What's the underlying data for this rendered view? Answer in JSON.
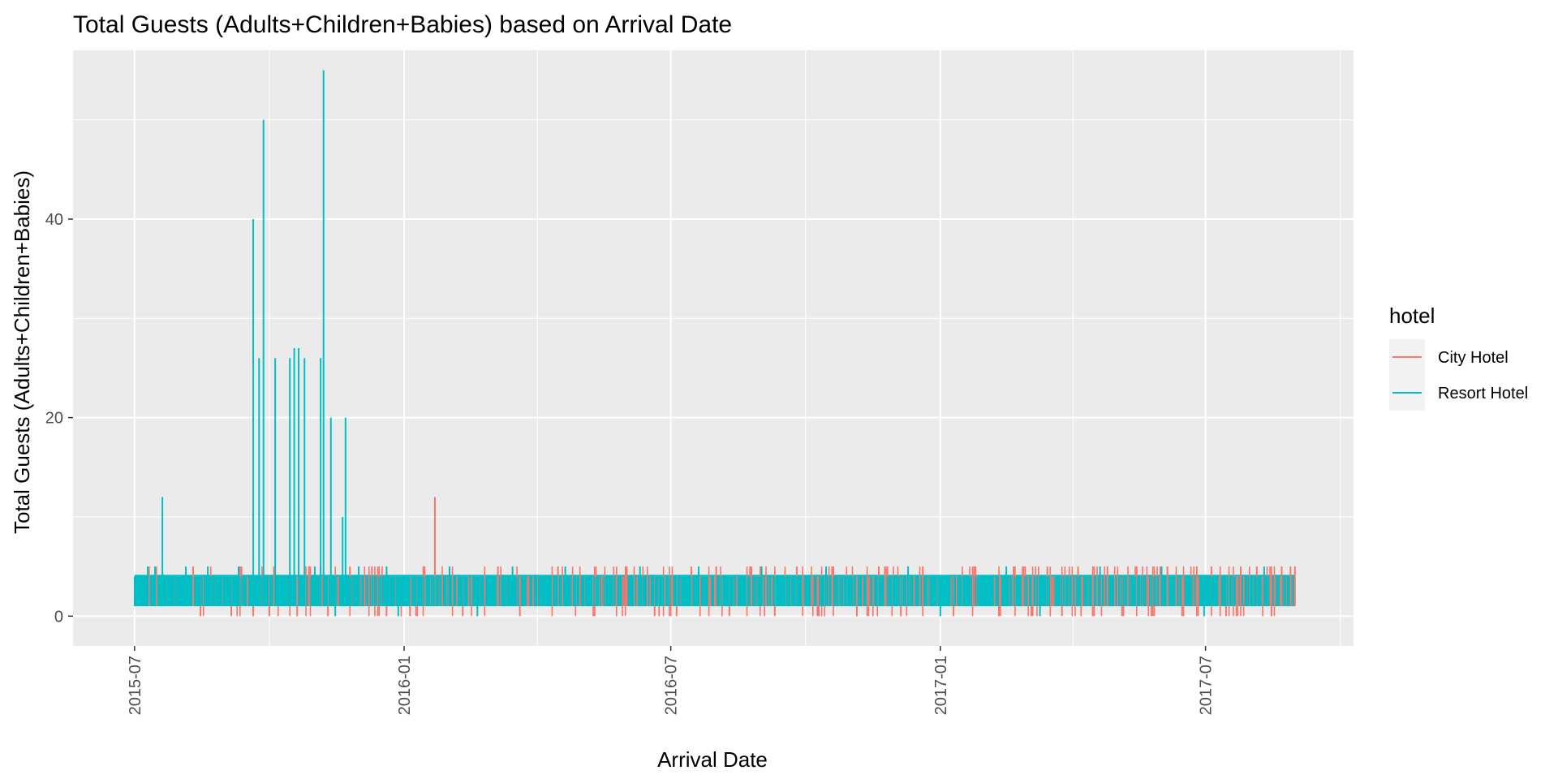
{
  "chart_data": {
    "type": "line",
    "title": "Total Guests (Adults+Children+Babies) based on Arrival Date",
    "xlabel": "Arrival Date",
    "ylabel": "Total Guests (Adults+Children+Babies)",
    "x_type": "date",
    "xlim": [
      "2015-05-20",
      "2017-10-10"
    ],
    "ylim": [
      -3,
      57
    ],
    "x_ticks": [
      "2015-07",
      "2016-01",
      "2016-07",
      "2017-01",
      "2017-07"
    ],
    "x_tick_dates": [
      "2015-07-01",
      "2016-01-01",
      "2016-07-01",
      "2017-01-01",
      "2017-07-01"
    ],
    "y_ticks": [
      0,
      20,
      40
    ],
    "grid": true,
    "legend": {
      "title": "hotel",
      "position": "right"
    },
    "band": {
      "start": "2015-07-01",
      "end": "2017-08-31",
      "low": 1,
      "high": 4
    },
    "series": [
      {
        "name": "City Hotel",
        "color": "#F8766D",
        "points": [
          [
            "2015-08-10",
            5
          ],
          [
            "2015-08-15",
            0
          ],
          [
            "2015-09-05",
            0
          ],
          [
            "2015-09-12",
            5
          ],
          [
            "2015-09-20",
            0
          ],
          [
            "2015-10-01",
            0
          ],
          [
            "2015-10-20",
            0
          ],
          [
            "2015-10-28",
            5
          ],
          [
            "2015-11-05",
            5
          ],
          [
            "2015-11-10",
            0
          ],
          [
            "2015-11-25",
            5
          ],
          [
            "2015-12-10",
            5
          ],
          [
            "2015-12-20",
            0
          ],
          [
            "2016-01-05",
            0
          ],
          [
            "2016-01-15",
            5
          ],
          [
            "2016-01-22",
            12
          ],
          [
            "2016-02-10",
            0
          ],
          [
            "2016-03-05",
            5
          ],
          [
            "2016-03-20",
            0
          ],
          [
            "2016-04-15",
            5
          ],
          [
            "2016-05-10",
            0
          ],
          [
            "2016-06-01",
            5
          ],
          [
            "2016-06-20",
            0
          ],
          [
            "2016-07-05",
            0
          ],
          [
            "2016-07-15",
            5
          ],
          [
            "2016-08-01",
            5
          ],
          [
            "2016-08-10",
            0
          ],
          [
            "2016-08-25",
            5
          ],
          [
            "2016-09-10",
            0
          ],
          [
            "2016-09-25",
            5
          ],
          [
            "2016-10-10",
            0
          ],
          [
            "2016-10-20",
            5
          ],
          [
            "2016-11-05",
            0
          ],
          [
            "2016-11-20",
            5
          ],
          [
            "2016-12-05",
            0
          ],
          [
            "2016-12-20",
            5
          ],
          [
            "2017-01-10",
            0
          ],
          [
            "2017-01-25",
            5
          ],
          [
            "2017-02-10",
            0
          ],
          [
            "2017-02-20",
            5
          ],
          [
            "2017-03-05",
            0
          ],
          [
            "2017-03-15",
            5
          ],
          [
            "2017-03-25",
            0
          ],
          [
            "2017-04-05",
            5
          ],
          [
            "2017-04-15",
            0
          ],
          [
            "2017-04-25",
            5
          ],
          [
            "2017-05-05",
            0
          ],
          [
            "2017-05-15",
            5
          ],
          [
            "2017-05-25",
            0
          ],
          [
            "2017-06-05",
            5
          ],
          [
            "2017-06-15",
            0
          ],
          [
            "2017-06-25",
            5
          ],
          [
            "2017-07-05",
            5
          ],
          [
            "2017-07-15",
            0
          ],
          [
            "2017-07-25",
            5
          ],
          [
            "2017-08-05",
            5
          ],
          [
            "2017-08-15",
            0
          ],
          [
            "2017-08-22",
            5
          ],
          [
            "2017-08-28",
            5
          ],
          [
            "2017-08-31",
            5
          ]
        ]
      },
      {
        "name": "Resort Hotel",
        "color": "#00BFC4",
        "points": [
          [
            "2015-07-10",
            5
          ],
          [
            "2015-07-15",
            5
          ],
          [
            "2015-07-20",
            12
          ],
          [
            "2015-08-05",
            5
          ],
          [
            "2015-08-20",
            5
          ],
          [
            "2015-09-10",
            5
          ],
          [
            "2015-09-20",
            40
          ],
          [
            "2015-09-24",
            26
          ],
          [
            "2015-09-27",
            50
          ],
          [
            "2015-10-05",
            26
          ],
          [
            "2015-10-15",
            26
          ],
          [
            "2015-10-18",
            27
          ],
          [
            "2015-10-21",
            27
          ],
          [
            "2015-10-25",
            26
          ],
          [
            "2015-11-01",
            5
          ],
          [
            "2015-11-05",
            26
          ],
          [
            "2015-11-07",
            55
          ],
          [
            "2015-11-12",
            20
          ],
          [
            "2015-11-15",
            0
          ],
          [
            "2015-11-20",
            10
          ],
          [
            "2015-11-22",
            20
          ],
          [
            "2015-12-01",
            5
          ],
          [
            "2015-12-20",
            5
          ],
          [
            "2015-12-28",
            0
          ],
          [
            "2016-02-01",
            5
          ],
          [
            "2016-02-20",
            0
          ],
          [
            "2016-03-15",
            5
          ],
          [
            "2016-04-20",
            5
          ],
          [
            "2016-06-10",
            5
          ],
          [
            "2016-07-20",
            5
          ],
          [
            "2016-09-01",
            5
          ],
          [
            "2016-10-15",
            5
          ],
          [
            "2016-12-10",
            5
          ],
          [
            "2017-01-01",
            0
          ],
          [
            "2017-02-15",
            5
          ],
          [
            "2017-03-10",
            0
          ],
          [
            "2017-04-20",
            5
          ],
          [
            "2017-06-01",
            5
          ],
          [
            "2017-06-30",
            0
          ],
          [
            "2017-08-10",
            5
          ]
        ]
      }
    ]
  }
}
